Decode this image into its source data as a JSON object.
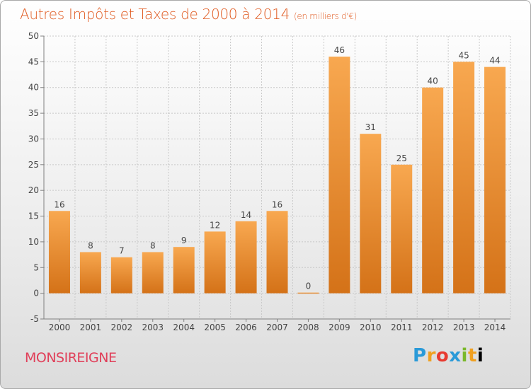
{
  "header": {
    "title": "Autres Impôts et Taxes de 2000 à 2014",
    "unit_note": "(en milliers d'€)"
  },
  "footer": {
    "commune": "MONSIREIGNE",
    "logo_text": "Proxiti",
    "logo_letters": [
      "P",
      "r",
      "o",
      "x",
      "i",
      "t",
      "i"
    ]
  },
  "colors": {
    "title": "#e05a20",
    "commune": "#e0405a",
    "bar_light": "#f8a850",
    "bar_dark": "#d47218"
  },
  "chart_data": {
    "type": "bar",
    "title": "Autres Impôts et Taxes de 2000 à 2014",
    "xlabel": "",
    "ylabel": "",
    "categories": [
      "2000",
      "2001",
      "2002",
      "2003",
      "2004",
      "2005",
      "2006",
      "2007",
      "2008",
      "2009",
      "2010",
      "2011",
      "2012",
      "2013",
      "2014"
    ],
    "values": [
      16,
      8,
      7,
      8,
      9,
      12,
      14,
      16,
      0,
      46,
      31,
      25,
      40,
      45,
      44
    ],
    "ylim": [
      -5,
      50
    ],
    "yticks": [
      -5,
      0,
      5,
      10,
      15,
      20,
      25,
      30,
      35,
      40,
      45,
      50
    ],
    "grid": true,
    "data_labels": true
  }
}
